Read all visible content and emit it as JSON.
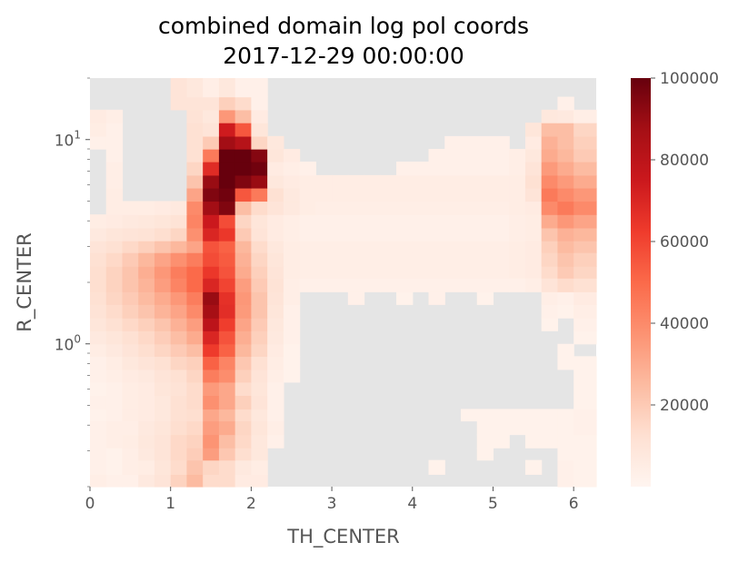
{
  "chart_data": {
    "type": "heatmap",
    "title": "combined domain log pol coords",
    "subtitle": "2017-12-29 00:00:00",
    "xlabel": "TH_CENTER",
    "ylabel": "R_CENTER",
    "xlim": [
      0,
      6.28
    ],
    "ylim": [
      0.2,
      20
    ],
    "yscale": "log",
    "x_ticks": [
      0,
      1,
      2,
      3,
      4,
      5,
      6
    ],
    "y_ticks": [
      {
        "value": 1,
        "base": "10",
        "exp": "0"
      },
      {
        "value": 10,
        "base": "10",
        "exp": "1"
      }
    ],
    "colorbar": {
      "colormap": "Reds",
      "min": 0,
      "max": 100000,
      "ticks": [
        20000,
        40000,
        60000,
        80000,
        100000
      ],
      "tick_labels": [
        "20000",
        "40000",
        "60000",
        "80000",
        "100000"
      ]
    },
    "missing_color": "#e5e5e5",
    "grid": false,
    "x_edges": [
      0,
      0.2,
      0.4,
      0.6,
      0.8,
      1.0,
      1.2,
      1.4,
      1.6,
      1.8,
      2.0,
      2.2,
      2.4,
      2.6,
      2.8,
      3.0,
      3.2,
      3.4,
      3.6,
      3.8,
      4.0,
      4.2,
      4.4,
      4.6,
      4.8,
      5.0,
      5.2,
      5.4,
      5.6,
      5.8,
      6.0,
      6.28
    ],
    "y_edges": [
      0.2,
      0.23,
      0.27,
      0.31,
      0.36,
      0.42,
      0.48,
      0.56,
      0.65,
      0.75,
      0.87,
      1.0,
      1.16,
      1.34,
      1.56,
      1.8,
      2.1,
      2.4,
      2.8,
      3.2,
      3.7,
      4.3,
      5.0,
      5.8,
      6.7,
      7.8,
      9.0,
      10.4,
      12.1,
      14.0,
      16.2,
      20
    ],
    "values_by_row_low_to_high": [
      [
        4000,
        3000,
        3000,
        7000,
        10000,
        17000,
        25000,
        14000,
        14000,
        6000,
        6000,
        null,
        null,
        null,
        null,
        null,
        null,
        null,
        null,
        null,
        null,
        null,
        null,
        null,
        null,
        null,
        null,
        null,
        null,
        3000,
        2000
      ],
      [
        3000,
        2000,
        4000,
        5000,
        9000,
        14000,
        22000,
        16000,
        14000,
        7000,
        5000,
        null,
        null,
        null,
        null,
        null,
        null,
        null,
        null,
        null,
        null,
        2000,
        null,
        null,
        null,
        null,
        null,
        2000,
        null,
        3000,
        2000
      ],
      [
        3000,
        2000,
        4000,
        7000,
        10000,
        15000,
        19000,
        34000,
        21000,
        13000,
        8000,
        null,
        null,
        null,
        null,
        null,
        null,
        null,
        null,
        null,
        null,
        null,
        null,
        null,
        2000,
        null,
        null,
        null,
        null,
        2000,
        2000
      ],
      [
        3000,
        4000,
        5000,
        8000,
        10000,
        15000,
        17000,
        37000,
        24000,
        15000,
        8000,
        3000,
        null,
        null,
        null,
        null,
        null,
        null,
        null,
        null,
        null,
        null,
        null,
        null,
        2000,
        2000,
        null,
        2000,
        2000,
        2000,
        2000
      ],
      [
        3000,
        4000,
        4000,
        7000,
        9000,
        13000,
        15000,
        34000,
        30000,
        16000,
        9000,
        4000,
        null,
        null,
        null,
        null,
        null,
        null,
        null,
        null,
        null,
        null,
        null,
        null,
        2000,
        2000,
        2000,
        2000,
        2000,
        2000,
        3000
      ],
      [
        2000,
        3000,
        5000,
        6000,
        8000,
        12000,
        13000,
        31000,
        26000,
        14000,
        8000,
        3000,
        null,
        null,
        null,
        null,
        null,
        null,
        null,
        null,
        null,
        null,
        null,
        2000,
        2000,
        2000,
        2000,
        2000,
        2000,
        2000,
        3000
      ],
      [
        3000,
        3000,
        5000,
        6000,
        8000,
        12000,
        14000,
        38000,
        31000,
        18000,
        10000,
        3000,
        null,
        null,
        null,
        null,
        null,
        null,
        null,
        null,
        null,
        null,
        null,
        null,
        null,
        null,
        null,
        null,
        null,
        null,
        2000
      ],
      [
        2000,
        3000,
        5000,
        6000,
        9000,
        11000,
        14000,
        35000,
        31000,
        14000,
        9000,
        3000,
        null,
        null,
        null,
        null,
        null,
        null,
        null,
        null,
        null,
        null,
        null,
        null,
        null,
        null,
        null,
        null,
        null,
        null,
        2000
      ],
      [
        3000,
        4000,
        6000,
        7000,
        10000,
        12000,
        16000,
        44000,
        39000,
        18000,
        10000,
        4000,
        2000,
        null,
        null,
        null,
        null,
        null,
        null,
        null,
        null,
        null,
        null,
        null,
        null,
        null,
        null,
        null,
        null,
        null,
        2000
      ],
      [
        3000,
        5000,
        8000,
        10000,
        12000,
        16000,
        18000,
        52000,
        42000,
        21000,
        12000,
        5000,
        2000,
        null,
        null,
        null,
        null,
        null,
        null,
        null,
        null,
        null,
        null,
        null,
        null,
        null,
        null,
        null,
        null,
        2000,
        2000
      ],
      [
        5000,
        7000,
        10000,
        13000,
        16000,
        20000,
        24000,
        63000,
        52000,
        26000,
        16000,
        6000,
        2000,
        null,
        null,
        null,
        null,
        null,
        null,
        null,
        null,
        null,
        null,
        null,
        null,
        null,
        null,
        null,
        null,
        2000,
        null
      ],
      [
        7000,
        9000,
        12000,
        15000,
        19000,
        24000,
        30000,
        70000,
        56000,
        29000,
        18000,
        7000,
        3000,
        null,
        null,
        null,
        null,
        null,
        null,
        null,
        null,
        null,
        null,
        null,
        null,
        null,
        null,
        null,
        null,
        null,
        2000
      ],
      [
        9000,
        12000,
        15000,
        18000,
        22000,
        28000,
        34000,
        80000,
        62000,
        32000,
        20000,
        8000,
        3000,
        null,
        null,
        null,
        null,
        null,
        null,
        null,
        null,
        null,
        null,
        null,
        null,
        null,
        null,
        null,
        2000,
        null,
        3000
      ],
      [
        11000,
        14000,
        18000,
        22000,
        27000,
        32000,
        40000,
        87000,
        67000,
        35000,
        22000,
        9000,
        3000,
        null,
        null,
        null,
        null,
        null,
        null,
        null,
        null,
        null,
        null,
        null,
        null,
        null,
        null,
        null,
        3000,
        2000,
        4000
      ],
      [
        12000,
        16000,
        20000,
        25000,
        30000,
        36000,
        44000,
        90000,
        66000,
        36000,
        22000,
        10000,
        4000,
        null,
        null,
        null,
        3000,
        null,
        null,
        2000,
        null,
        3000,
        null,
        null,
        2000,
        null,
        null,
        null,
        4000,
        3000,
        6000
      ],
      [
        13000,
        17000,
        22000,
        27000,
        34000,
        42000,
        50000,
        70000,
        60000,
        34000,
        20000,
        11000,
        4000,
        3000,
        3000,
        3000,
        3000,
        3000,
        3000,
        3000,
        3000,
        3000,
        3000,
        3000,
        3000,
        3000,
        3000,
        4000,
        10000,
        14000,
        12000
      ],
      [
        13000,
        17000,
        22000,
        29000,
        36000,
        44000,
        50000,
        64000,
        56000,
        30000,
        18000,
        10000,
        5000,
        4000,
        4000,
        4000,
        4000,
        4000,
        4000,
        4000,
        4000,
        4000,
        4000,
        4000,
        4000,
        4000,
        5000,
        6000,
        14000,
        20000,
        16000
      ],
      [
        12000,
        15000,
        20000,
        26000,
        32000,
        38000,
        44000,
        58000,
        54000,
        28000,
        16000,
        9000,
        5000,
        4000,
        4000,
        4000,
        4000,
        4000,
        4000,
        4000,
        4000,
        4000,
        4000,
        4000,
        4000,
        4000,
        5000,
        6000,
        16000,
        22000,
        18000
      ],
      [
        10000,
        12000,
        15000,
        18000,
        22000,
        26000,
        32000,
        56000,
        52000,
        26000,
        14000,
        8000,
        5000,
        4000,
        4000,
        4000,
        4000,
        4000,
        4000,
        4000,
        4000,
        4000,
        4000,
        4000,
        4000,
        4000,
        5000,
        6000,
        18000,
        25000,
        22000
      ],
      [
        7000,
        9000,
        10000,
        11000,
        13000,
        16000,
        38000,
        70000,
        64000,
        20000,
        10000,
        6000,
        4000,
        3000,
        3000,
        3000,
        3000,
        3000,
        3000,
        3000,
        3000,
        3000,
        3000,
        3000,
        3000,
        3000,
        4000,
        5000,
        22000,
        28000,
        26000
      ],
      [
        5000,
        6000,
        7000,
        8000,
        9000,
        11000,
        42000,
        75000,
        58000,
        16000,
        9000,
        6000,
        4000,
        3000,
        3000,
        3000,
        3000,
        3000,
        3000,
        3000,
        3000,
        3000,
        3000,
        3000,
        3000,
        3000,
        4000,
        5000,
        30000,
        36000,
        32000
      ],
      [
        null,
        5000,
        5000,
        5000,
        6000,
        7000,
        40000,
        88000,
        95000,
        24000,
        14000,
        10000,
        7000,
        5000,
        4000,
        4000,
        4000,
        4000,
        4000,
        4000,
        4000,
        4000,
        4000,
        4000,
        4000,
        4000,
        5000,
        6000,
        40000,
        45000,
        40000
      ],
      [
        null,
        5000,
        null,
        null,
        null,
        null,
        32000,
        95000,
        98000,
        55000,
        45000,
        12000,
        7000,
        5000,
        5000,
        5000,
        5000,
        5000,
        5000,
        5000,
        5000,
        5000,
        5000,
        5000,
        5000,
        5000,
        5000,
        10000,
        45000,
        40000,
        36000
      ],
      [
        null,
        4000,
        null,
        null,
        null,
        null,
        22000,
        90000,
        100000,
        95000,
        90000,
        8000,
        6000,
        5000,
        5000,
        5000,
        5000,
        5000,
        5000,
        5000,
        5000,
        5000,
        5000,
        5000,
        5000,
        5000,
        5000,
        12000,
        40000,
        35000,
        30000
      ],
      [
        null,
        4000,
        null,
        null,
        null,
        null,
        16000,
        68000,
        100000,
        100000,
        98000,
        6000,
        4000,
        3000,
        null,
        null,
        null,
        null,
        null,
        3000,
        3000,
        3000,
        3000,
        3000,
        3000,
        3000,
        4000,
        10000,
        35000,
        30000,
        25000
      ],
      [
        null,
        3000,
        null,
        null,
        null,
        null,
        12000,
        45000,
        100000,
        100000,
        94000,
        9000,
        6000,
        null,
        null,
        null,
        null,
        null,
        null,
        null,
        null,
        3000,
        3000,
        3000,
        3000,
        3000,
        4000,
        8000,
        30000,
        26000,
        20000
      ],
      [
        3000,
        3000,
        null,
        null,
        null,
        null,
        12000,
        20000,
        88000,
        82000,
        16000,
        8000,
        null,
        null,
        null,
        null,
        null,
        null,
        null,
        null,
        null,
        null,
        3000,
        3000,
        3000,
        3000,
        null,
        6000,
        28000,
        24000,
        18000
      ],
      [
        5000,
        3000,
        null,
        null,
        null,
        null,
        12000,
        10000,
        74000,
        55000,
        9000,
        null,
        null,
        null,
        null,
        null,
        null,
        null,
        null,
        null,
        null,
        null,
        null,
        null,
        null,
        null,
        null,
        9000,
        24000,
        24000,
        16000
      ],
      [
        6000,
        4000,
        null,
        null,
        null,
        null,
        11000,
        8000,
        36000,
        24000,
        6000,
        null,
        null,
        null,
        null,
        null,
        null,
        null,
        null,
        null,
        null,
        null,
        null,
        null,
        null,
        null,
        null,
        null,
        8000,
        7000,
        4000
      ],
      [
        null,
        null,
        null,
        null,
        null,
        10000,
        10000,
        10000,
        18000,
        14000,
        3000,
        null,
        null,
        null,
        null,
        null,
        null,
        null,
        null,
        null,
        null,
        null,
        null,
        null,
        null,
        null,
        null,
        null,
        null,
        3000,
        null
      ],
      [
        null,
        null,
        null,
        null,
        null,
        10000,
        8000,
        4000,
        8000,
        3000,
        3000,
        null,
        null,
        null,
        null,
        null,
        null,
        null,
        null,
        null,
        null,
        null,
        null,
        null,
        null,
        null,
        null,
        null,
        null,
        null,
        null
      ]
    ]
  }
}
